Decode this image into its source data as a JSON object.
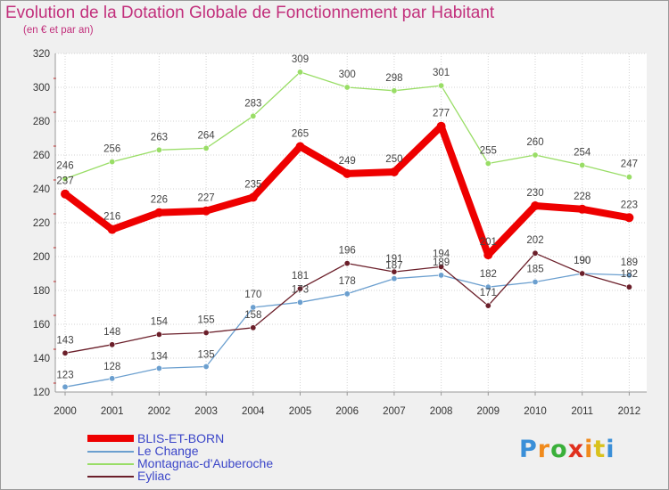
{
  "header": {
    "title": "Evolution de la Dotation Globale de Fonctionnement par Habitant",
    "subtitle": "(en € et par an)"
  },
  "chart_data": {
    "type": "line",
    "x": [
      "2000",
      "2001",
      "2002",
      "2003",
      "2004",
      "2005",
      "2006",
      "2007",
      "2008",
      "2009",
      "2010",
      "2011",
      "2012"
    ],
    "ylim": [
      120,
      320
    ],
    "yticks": [
      120,
      140,
      160,
      180,
      200,
      220,
      240,
      260,
      280,
      300,
      320
    ],
    "grid": true,
    "legend_position": "bottom-left",
    "series": [
      {
        "name": "BLIS-ET-BORN",
        "color": "#ee0000",
        "emphasis": true,
        "values": [
          237,
          216,
          226,
          227,
          235,
          265,
          249,
          250,
          277,
          201,
          230,
          228,
          223
        ]
      },
      {
        "name": "Le Change",
        "color": "#6b9fcf",
        "values": [
          123,
          128,
          134,
          135,
          170,
          173,
          178,
          187,
          189,
          182,
          185,
          190,
          189
        ]
      },
      {
        "name": "Montagnac-d'Auberoche",
        "color": "#99dd66",
        "values": [
          246,
          256,
          263,
          264,
          283,
          309,
          300,
          298,
          301,
          255,
          260,
          254,
          247
        ]
      },
      {
        "name": "Eyliac",
        "color": "#6b1f2a",
        "values": [
          143,
          148,
          154,
          155,
          158,
          181,
          196,
          191,
          194,
          171,
          202,
          190,
          182
        ]
      }
    ]
  },
  "logo": {
    "letters": [
      "P",
      "r",
      "o",
      "x",
      "i",
      "t",
      "i"
    ],
    "colors": [
      "#3a8fd8",
      "#f08a1c",
      "#3ab03a",
      "#e0301e",
      "#f08a1c",
      "#d9c21c",
      "#3a8fd8"
    ]
  }
}
